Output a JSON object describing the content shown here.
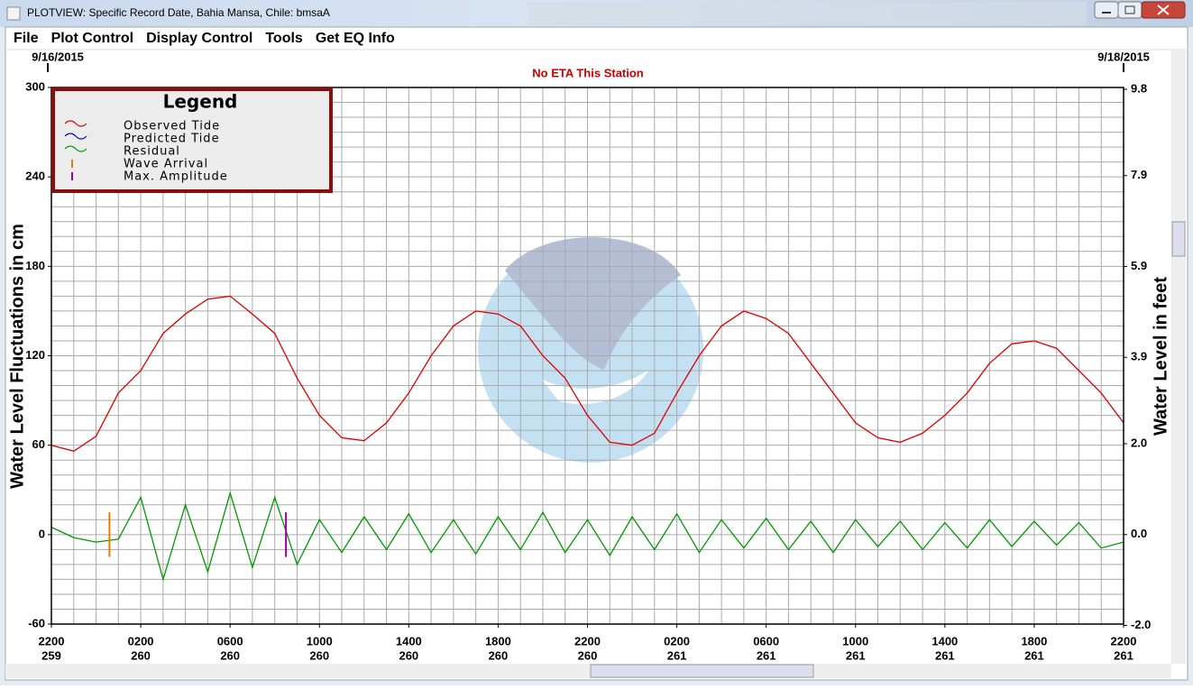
{
  "window": {
    "title": "PLOTVIEW: Specific Record Date, Bahia Mansa, Chile: bmsaA"
  },
  "menu": [
    "File",
    "Plot Control",
    "Display Control",
    "Tools",
    "Get EQ Info"
  ],
  "chart_data": {
    "type": "line",
    "title": "No ETA This Station",
    "start_date": "9/16/2015",
    "end_date": "9/18/2015",
    "ylabel": "Water Level Fluctuations in cm",
    "y2label": "Water Level in feet",
    "x": [
      0,
      1,
      2,
      3,
      4,
      5,
      6,
      7,
      8,
      9,
      10,
      11,
      12,
      13,
      14,
      15,
      16,
      17,
      18,
      19,
      20,
      21,
      22,
      23,
      24,
      25,
      26,
      27,
      28,
      29,
      30,
      31,
      32,
      33,
      34,
      35,
      36,
      37,
      38,
      39,
      40,
      41,
      42,
      43,
      44,
      45,
      46,
      47,
      48
    ],
    "xlim": [
      0,
      48
    ],
    "xticks": [
      {
        "value": 0,
        "label": "2200"
      },
      {
        "value": 4,
        "label": "0200"
      },
      {
        "value": 8,
        "label": "0600"
      },
      {
        "value": 12,
        "label": "1000"
      },
      {
        "value": 16,
        "label": "1400"
      },
      {
        "value": 20,
        "label": "1800"
      },
      {
        "value": 24,
        "label": "2200"
      },
      {
        "value": 28,
        "label": "0200"
      },
      {
        "value": 32,
        "label": "0600"
      },
      {
        "value": 36,
        "label": "1000"
      },
      {
        "value": 40,
        "label": "1400"
      },
      {
        "value": 44,
        "label": "1800"
      },
      {
        "value": 48,
        "label": "2200"
      }
    ],
    "xtick_days": [
      "259",
      "260",
      "260",
      "260",
      "260",
      "260",
      "260",
      "261",
      "261",
      "261",
      "261",
      "261",
      "261"
    ],
    "ylim": [
      -60,
      300
    ],
    "yticks": [
      -60,
      0,
      60,
      120,
      180,
      240,
      300
    ],
    "y2lim": [
      -1.97,
      9.84
    ],
    "y2ticks": [
      {
        "value": -2,
        "label": "-2.0"
      },
      {
        "value": 0,
        "label": "0.0"
      },
      {
        "value": 2,
        "label": "2.0"
      },
      3.9,
      5.9,
      7.9,
      9.8
    ],
    "xgrid": [
      0,
      1,
      2,
      3,
      4,
      5,
      6,
      7,
      8,
      9,
      10,
      11,
      12,
      13,
      14,
      15,
      16,
      17,
      18,
      19,
      20,
      21,
      22,
      23,
      24,
      25,
      26,
      27,
      28,
      29,
      30,
      31,
      32,
      33,
      34,
      35,
      36,
      37,
      38,
      39,
      40,
      41,
      42,
      43,
      44,
      45,
      46,
      47,
      48
    ],
    "ygrid": [
      -60,
      -50,
      -40,
      -30,
      -20,
      -10,
      0,
      10,
      20,
      30,
      40,
      50,
      60,
      70,
      80,
      90,
      100,
      110,
      120,
      130,
      140,
      150,
      160,
      170,
      180,
      190,
      200,
      210,
      220,
      230,
      240,
      250,
      260,
      270,
      280,
      290,
      300
    ],
    "grid": true,
    "legend_title": "Legend",
    "series": [
      {
        "name": "Observed Tide",
        "color": "#dd0000",
        "values": [
          60,
          56,
          66,
          95,
          110,
          135,
          148,
          158,
          160,
          148,
          135,
          105,
          80,
          65,
          63,
          75,
          95,
          120,
          140,
          150,
          148,
          140,
          120,
          105,
          80,
          62,
          60,
          68,
          95,
          120,
          140,
          150,
          145,
          135,
          115,
          95,
          75,
          65,
          62,
          68,
          80,
          95,
          115,
          128,
          130,
          125,
          110,
          95,
          75
        ]
      },
      {
        "name": "Predicted Tide",
        "color": "#0000c0",
        "values": [
          null,
          null,
          null,
          null,
          null,
          null,
          null,
          null,
          null,
          null,
          null,
          null,
          null,
          null,
          null,
          null,
          null,
          null,
          null,
          null,
          null,
          null,
          null,
          null,
          null,
          null,
          null,
          null,
          null,
          null,
          null,
          null,
          null,
          null,
          null,
          null,
          null,
          null,
          null,
          null,
          null,
          null,
          null,
          null,
          null,
          null,
          null,
          null,
          null
        ]
      },
      {
        "name": "Residual",
        "color": "#009900",
        "values": [
          5,
          -2,
          -5,
          -3,
          25,
          -30,
          20,
          -25,
          28,
          -22,
          25,
          -20,
          10,
          -12,
          12,
          -10,
          14,
          -12,
          10,
          -13,
          12,
          -10,
          15,
          -12,
          10,
          -14,
          12,
          -10,
          14,
          -12,
          10,
          -9,
          11,
          -10,
          9,
          -12,
          10,
          -8,
          9,
          -10,
          8,
          -9,
          10,
          -8,
          9,
          -7,
          8,
          -9,
          -5
        ]
      }
    ],
    "markers": [
      {
        "name": "Wave Arrival",
        "color": "#e08000",
        "x": 2.6,
        "ymin": -15,
        "ymax": 15
      },
      {
        "name": "Max. Amplitude",
        "color": "#a000a0",
        "x": 10.5,
        "ymin": -15,
        "ymax": 15
      }
    ]
  }
}
